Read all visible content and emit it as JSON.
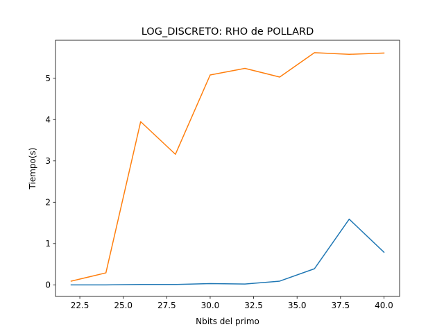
{
  "chart_data": {
    "type": "line",
    "title": "LOG_DISCRETO: RHO de POLLARD",
    "xlabel": "Nbits del primo",
    "ylabel": "Tiempo(s)",
    "xlim": [
      21.1,
      40.9
    ],
    "ylim": [
      -0.28,
      5.92
    ],
    "xticks": [
      22.5,
      25.0,
      27.5,
      30.0,
      32.5,
      35.0,
      37.5,
      40.0
    ],
    "xtick_labels": [
      "22.5",
      "25.0",
      "27.5",
      "30.0",
      "32.5",
      "35.0",
      "37.5",
      "40.0"
    ],
    "yticks": [
      0,
      1,
      2,
      3,
      4,
      5
    ],
    "ytick_labels": [
      "0",
      "1",
      "2",
      "3",
      "4",
      "5"
    ],
    "grid": false,
    "legend": false,
    "x": [
      22,
      24,
      26,
      28,
      30,
      32,
      34,
      36,
      38,
      40
    ],
    "series": [
      {
        "color": "#1f77b4",
        "values": [
          0.0,
          0.0,
          0.01,
          0.01,
          0.03,
          0.02,
          0.09,
          0.39,
          1.59,
          0.79
        ]
      },
      {
        "color": "#ff7f0e",
        "values": [
          0.09,
          0.29,
          3.95,
          3.16,
          5.08,
          5.24,
          5.03,
          5.62,
          5.58,
          5.61
        ]
      }
    ]
  }
}
